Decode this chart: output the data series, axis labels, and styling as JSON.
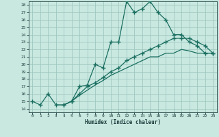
{
  "title": "",
  "xlabel": "Humidex (Indice chaleur)",
  "bg_color": "#c8e8e0",
  "grid_color": "#a0c8c0",
  "line_color": "#1a6e60",
  "xlim": [
    -0.5,
    23.5
  ],
  "ylim": [
    13.5,
    28.5
  ],
  "xticks": [
    0,
    1,
    2,
    3,
    4,
    5,
    6,
    7,
    8,
    9,
    10,
    11,
    12,
    13,
    14,
    15,
    16,
    17,
    18,
    19,
    20,
    21,
    22,
    23
  ],
  "yticks": [
    14,
    15,
    16,
    17,
    18,
    19,
    20,
    21,
    22,
    23,
    24,
    25,
    26,
    27,
    28
  ],
  "curve1_x": [
    0,
    1,
    2,
    3,
    4,
    5,
    6,
    7,
    8,
    9,
    10,
    11,
    12,
    13,
    14,
    15,
    16,
    17,
    18,
    19,
    20,
    21,
    22,
    23
  ],
  "curve1_y": [
    15.0,
    14.5,
    16.0,
    14.5,
    14.5,
    15.0,
    17.0,
    17.2,
    20.0,
    19.5,
    23.0,
    23.0,
    28.5,
    27.0,
    27.5,
    28.5,
    27.0,
    26.0,
    24.0,
    24.0,
    23.0,
    22.5,
    21.5,
    21.5
  ],
  "curve2_x": [
    4,
    5,
    6,
    7,
    8,
    9,
    10,
    11,
    12,
    13,
    14,
    15,
    16,
    17,
    18,
    19,
    20,
    21,
    22,
    23
  ],
  "curve2_y": [
    14.5,
    15.0,
    16.0,
    17.0,
    17.5,
    18.2,
    19.0,
    19.5,
    20.5,
    21.0,
    21.5,
    22.0,
    22.5,
    23.0,
    23.5,
    23.5,
    23.5,
    23.0,
    22.5,
    21.5
  ],
  "curve3_x": [
    3,
    4,
    5,
    6,
    7,
    8,
    9,
    10,
    11,
    12,
    13,
    14,
    15,
    16,
    17,
    18,
    19,
    20,
    21,
    22,
    23
  ],
  "curve3_y": [
    14.5,
    14.5,
    15.0,
    15.8,
    16.5,
    17.2,
    17.8,
    18.5,
    19.0,
    19.5,
    20.0,
    20.5,
    21.0,
    21.0,
    21.5,
    21.5,
    22.0,
    21.8,
    21.5,
    21.5,
    21.5
  ]
}
